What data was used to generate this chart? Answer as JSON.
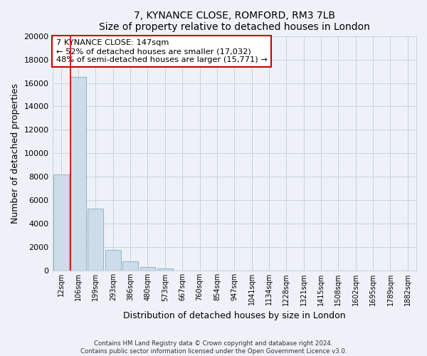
{
  "title": "7, KYNANCE CLOSE, ROMFORD, RM3 7LB",
  "subtitle": "Size of property relative to detached houses in London",
  "xlabel": "Distribution of detached houses by size in London",
  "ylabel": "Number of detached properties",
  "bar_labels": [
    "12sqm",
    "106sqm",
    "199sqm",
    "293sqm",
    "386sqm",
    "480sqm",
    "573sqm",
    "667sqm",
    "760sqm",
    "854sqm",
    "947sqm",
    "1041sqm",
    "1134sqm",
    "1228sqm",
    "1321sqm",
    "1415sqm",
    "1508sqm",
    "1602sqm",
    "1695sqm",
    "1789sqm",
    "1882sqm"
  ],
  "bar_values": [
    8200,
    16500,
    5300,
    1800,
    800,
    300,
    200,
    0,
    0,
    0,
    0,
    0,
    0,
    0,
    0,
    0,
    0,
    0,
    0,
    0,
    0
  ],
  "bar_color": "#ccdce8",
  "bar_edge_color": "#99b8cc",
  "ylim": [
    0,
    20000
  ],
  "yticks": [
    0,
    2000,
    4000,
    6000,
    8000,
    10000,
    12000,
    14000,
    16000,
    18000,
    20000
  ],
  "annotation_line1": "7 KYNANCE CLOSE: 147sqm",
  "annotation_line2": "← 52% of detached houses are smaller (17,032)",
  "annotation_line3": "48% of semi-detached houses are larger (15,771) →",
  "marker_bar_index": 1,
  "marker_color": "#cc0000",
  "footer_line1": "Contains HM Land Registry data © Crown copyright and database right 2024.",
  "footer_line2": "Contains public sector information licensed under the Open Government Licence v3.0.",
  "background_color": "#eef2f8",
  "plot_background": "#eef2f8",
  "grid_color": "#c8d0dc"
}
